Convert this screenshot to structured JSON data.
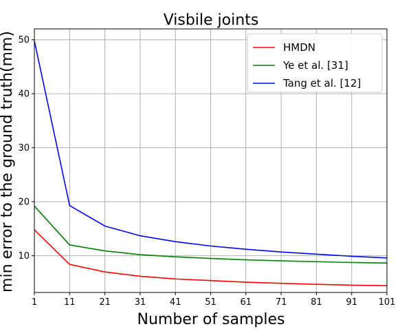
{
  "chart_data": {
    "type": "line",
    "title": "Visbile joints",
    "xlabel": "Number of samples",
    "ylabel": "min error to the ground truth(mm)",
    "x": [
      1,
      11,
      21,
      31,
      41,
      51,
      61,
      71,
      81,
      91,
      101
    ],
    "xticks": [
      "1",
      "11",
      "21",
      "31",
      "41",
      "51",
      "61",
      "71",
      "81",
      "91",
      "101"
    ],
    "yticks": [
      "10",
      "20",
      "30",
      "40",
      "50"
    ],
    "xlim": [
      1,
      101
    ],
    "ylim": [
      3.2,
      52
    ],
    "grid": true,
    "legend_position": "top-right",
    "series": [
      {
        "name": "HMDN",
        "color": "#ff0000",
        "values": [
          14.8,
          8.4,
          7.0,
          6.2,
          5.7,
          5.4,
          5.1,
          4.9,
          4.7,
          4.55,
          4.45
        ]
      },
      {
        "name": "Ye et al. [31]",
        "color": "#008000",
        "values": [
          19.2,
          12.0,
          10.9,
          10.2,
          9.8,
          9.5,
          9.25,
          9.05,
          8.9,
          8.75,
          8.65
        ]
      },
      {
        "name": "Tang et al. [12]",
        "color": "#0000ff",
        "values": [
          49.8,
          19.3,
          15.5,
          13.7,
          12.6,
          11.8,
          11.2,
          10.7,
          10.3,
          9.9,
          9.6
        ]
      }
    ]
  }
}
